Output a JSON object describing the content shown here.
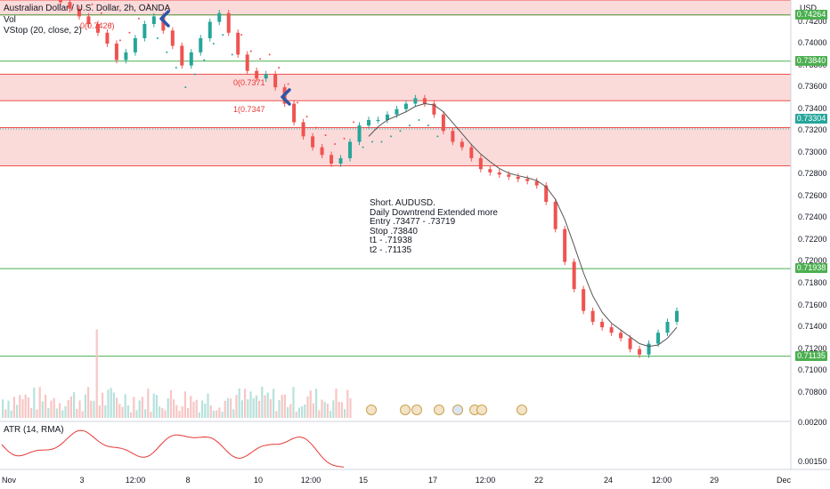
{
  "header": {
    "symbol_title": "Australian Dollar / U.S. Dollar, 2h, OANDA",
    "vol_label": "Vol",
    "vstop_label": "VStop (20, close, 2)",
    "atr_label": "ATR (14, RMA)"
  },
  "note": {
    "lines": [
      "Short. AUDUSD.",
      "Daily Downtrend Extended more",
      "Entry .73477 - .73719",
      "Stop .73840",
      "t1 - .71938",
      "t2 - .71135"
    ]
  },
  "trade_labels": {
    "first": "0(0.7426)",
    "second": "1(0.7347",
    "third": "0(0.7371"
  },
  "price_axis": {
    "currency": "USD",
    "ticks": [
      "0.74200",
      "0.74000",
      "0.73800",
      "0.73600",
      "0.73400",
      "0.73200",
      "0.73000",
      "0.72800",
      "0.72600",
      "0.72400",
      "0.72200",
      "0.72000",
      "0.71800",
      "0.71600",
      "0.71400",
      "0.71200",
      "0.71000",
      "0.70800"
    ],
    "badges": [
      {
        "value": "0.74264",
        "color": "#4caf50"
      },
      {
        "value": "0.73840",
        "color": "#4caf50"
      },
      {
        "value": "0.73304",
        "color": "#26a69a"
      },
      {
        "value": "0.71938",
        "color": "#4caf50"
      },
      {
        "value": "0.71135",
        "color": "#4caf50"
      }
    ],
    "atr_ticks": [
      "0.00200",
      "0.00150"
    ]
  },
  "time_axis": {
    "labels": [
      "Nov",
      "3",
      "12:00",
      "8",
      "10",
      "12:00",
      "15",
      "17",
      "12:00",
      "22",
      "24",
      "12:00",
      "29",
      "Dec"
    ]
  },
  "colors": {
    "up": "#26a69a",
    "down": "#ef5350",
    "zone_fill": "#fbdada",
    "zone_line": "#ef5350",
    "level_line": "#4caf50",
    "ma_line": "#555555",
    "atr_line": "#e53935",
    "caret": "#2f56a6"
  },
  "chart_data": {
    "type": "candlestick",
    "symbol": "AUDUSD",
    "timeframe": "2h",
    "y_range": [
      0.707,
      0.744
    ],
    "zones": [
      {
        "from": 0.74264,
        "to": 0.744
      },
      {
        "from": 0.73477,
        "to": 0.73719
      },
      {
        "from": 0.7288,
        "to": 0.7323
      }
    ],
    "levels": [
      0.74264,
      0.7384,
      0.71938,
      0.71135
    ],
    "last_price": 0.73304,
    "close_path": [
      0.7438,
      0.7432,
      0.7425,
      0.7418,
      0.741,
      0.74,
      0.7385,
      0.7392,
      0.7405,
      0.7418,
      0.7425,
      0.7412,
      0.7398,
      0.738,
      0.7392,
      0.7405,
      0.742,
      0.7428,
      0.741,
      0.739,
      0.7375,
      0.7368,
      0.7372,
      0.736,
      0.7345,
      0.7328,
      0.7315,
      0.7305,
      0.7298,
      0.729,
      0.7295,
      0.731,
      0.7325,
      0.733,
      0.733,
      0.7335,
      0.734,
      0.7345,
      0.735,
      0.7345,
      0.7335,
      0.732,
      0.731,
      0.7305,
      0.7295,
      0.7285,
      0.7282,
      0.728,
      0.7278,
      0.7276,
      0.7274,
      0.727,
      0.7255,
      0.723,
      0.72,
      0.7175,
      0.7155,
      0.7145,
      0.714,
      0.7135,
      0.713,
      0.712,
      0.7115,
      0.7125,
      0.7135,
      0.7145,
      0.7155
    ]
  }
}
